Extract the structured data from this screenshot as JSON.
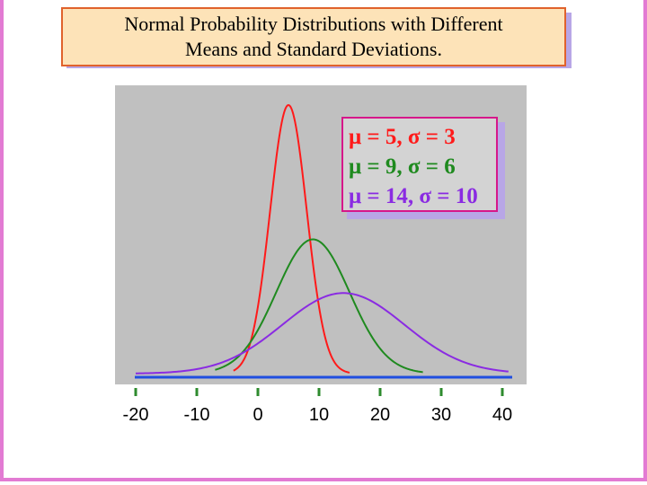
{
  "title": {
    "line1": "Normal Probability Distributions with Different",
    "line2": "Means and Standard Deviations."
  },
  "colors": {
    "plot_bg": "#c0c0c0",
    "baseline": "#1f4ee0",
    "tick": "#2e8b2e"
  },
  "chart_data": {
    "type": "line",
    "title": "Normal Probability Distributions with Different Means and Standard Deviations.",
    "xlabel": "",
    "ylabel": "",
    "xlim": [
      -22,
      42
    ],
    "xticks": [
      -20,
      -10,
      0,
      10,
      20,
      30,
      40
    ],
    "xtick_labels": [
      "-20",
      "-10",
      "0",
      "10",
      "20",
      "30",
      "40"
    ],
    "grid": false,
    "legend_position": "top-right",
    "series": [
      {
        "name": "μ = 5, σ = 3",
        "mu": 5,
        "sigma": 3,
        "x_range": [
          -4,
          15
        ],
        "color": "#ff1a1a"
      },
      {
        "name": "μ = 9, σ = 6",
        "mu": 9,
        "sigma": 6,
        "x_range": [
          -7,
          27
        ],
        "color": "#1f8a1f"
      },
      {
        "name": "μ = 14, σ = 10",
        "mu": 14,
        "sigma": 10,
        "x_range": [
          -20,
          41
        ],
        "color": "#8a2be2"
      }
    ]
  }
}
